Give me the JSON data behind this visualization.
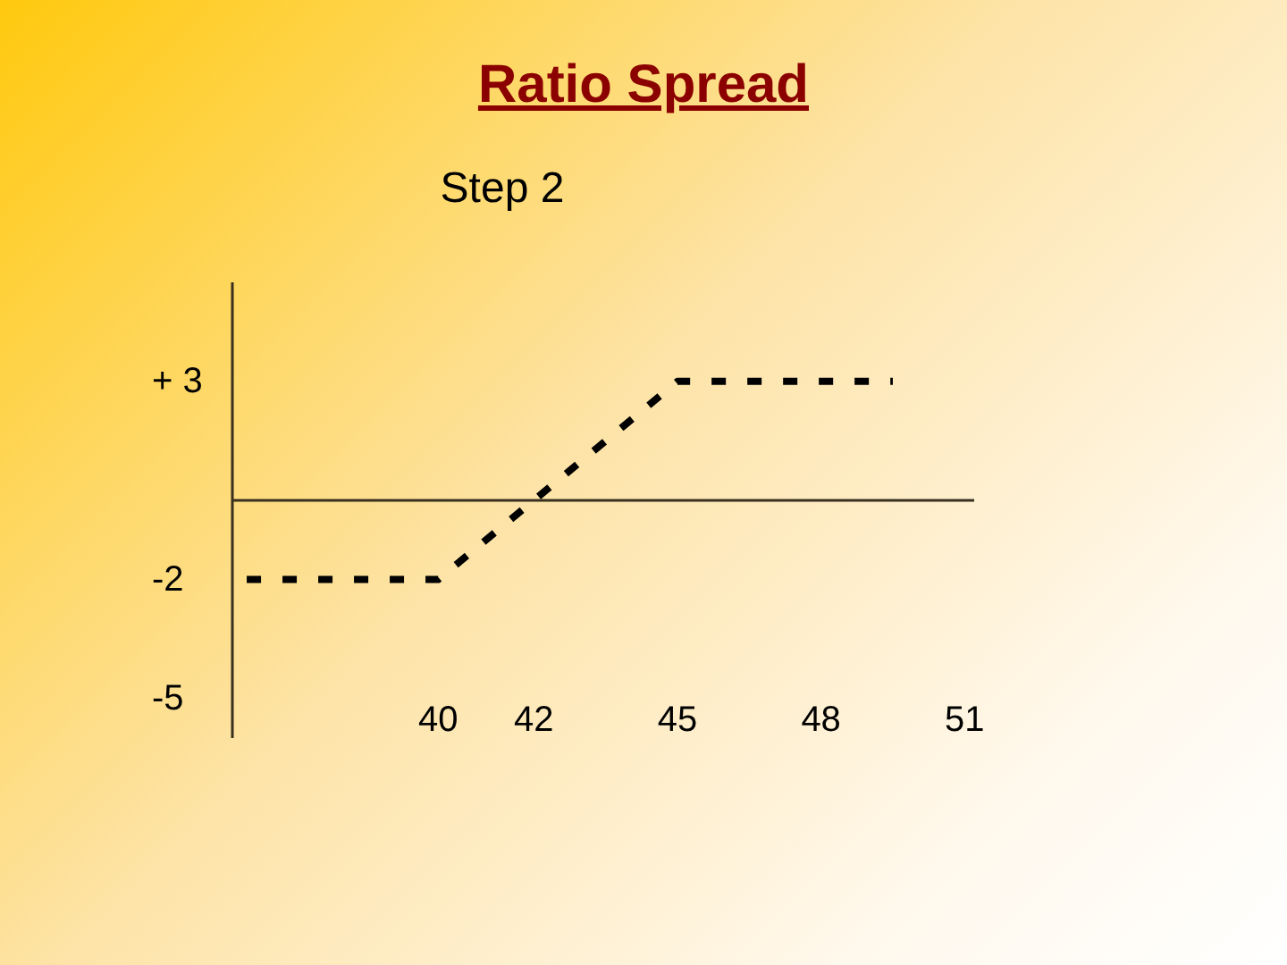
{
  "chart_data": {
    "type": "line",
    "title": "Ratio Spread",
    "subtitle": "Step 2",
    "x": [
      36,
      40,
      45,
      49.5
    ],
    "values": [
      -2,
      -2,
      3,
      3
    ],
    "color": "#000000",
    "line_style": "dashed",
    "xlim": [
      35.7,
      51.2
    ],
    "xticks": [
      40,
      42,
      45,
      48,
      51
    ],
    "ylim": [
      -6,
      5.5
    ],
    "yticks": [
      {
        "value": 3,
        "label": "+ 3"
      },
      -2,
      -5
    ]
  }
}
